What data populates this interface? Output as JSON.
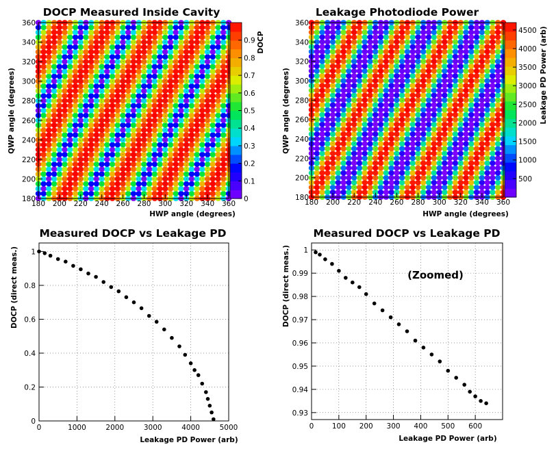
{
  "figure": {
    "panels": [
      {
        "title": "DOCP Measured Inside Cavity",
        "xlabel": "HWP angle  (degrees)",
        "ylabel": "QWP angle  (degrees)",
        "zlabel": "DOCP"
      },
      {
        "title": "Leakage Photodiode Power",
        "xlabel": "HWP angle  (degrees)",
        "ylabel": "QWP angle  (degrees)",
        "zlabel": "Leakage PD Power (arb)"
      },
      {
        "title": "Measured DOCP vs Leakage PD",
        "xlabel": "Leakage PD Power (arb)",
        "ylabel": "DOCP    (direct meas.)"
      },
      {
        "title": "Measured DOCP vs Leakage PD",
        "xlabel": "Leakage PD Power (arb)",
        "ylabel": "DOCP    (direct meas.)",
        "annotation": "(Zoomed)"
      }
    ]
  },
  "chart_data": [
    {
      "type": "heatmap",
      "title": "DOCP Measured Inside Cavity",
      "xlabel": "HWP angle  (degrees)",
      "ylabel": "QWP angle  (degrees)",
      "zlabel": "DOCP",
      "xlim": [
        180,
        360
      ],
      "ylim": [
        180,
        360
      ],
      "zlim": [
        0,
        1
      ],
      "x_step": 5,
      "y_step": 5,
      "xticks": [
        180,
        200,
        220,
        240,
        260,
        280,
        300,
        320,
        340,
        360
      ],
      "yticks": [
        180,
        200,
        220,
        240,
        260,
        280,
        300,
        320,
        340,
        360
      ],
      "zticks": [
        0,
        0.1,
        0.2,
        0.3,
        0.4,
        0.5,
        0.6,
        0.7,
        0.8,
        0.9
      ],
      "pattern": "DOCP = |sin(2*(2*HWP - QWP))|, diagonal stripes repeating every 45 degrees",
      "grid": true
    },
    {
      "type": "heatmap",
      "title": "Leakage Photodiode Power",
      "xlabel": "HWP angle  (degrees)",
      "ylabel": "QWP angle  (degrees)",
      "zlabel": "Leakage PD Power (arb)",
      "xlim": [
        180,
        360
      ],
      "ylim": [
        180,
        360
      ],
      "zlim": [
        0,
        4700
      ],
      "x_step": 5,
      "y_step": 5,
      "xticks": [
        180,
        200,
        220,
        240,
        260,
        280,
        300,
        320,
        340,
        360
      ],
      "yticks": [
        180,
        200,
        220,
        240,
        260,
        280,
        300,
        320,
        340,
        360
      ],
      "zticks": [
        500,
        1000,
        1500,
        2000,
        2500,
        3000,
        3500,
        4000,
        4500
      ],
      "pattern": "Power = 4600*cos^2(2*(2*HWP - QWP)), complementary to DOCP",
      "grid": true
    },
    {
      "type": "scatter",
      "title": "Measured DOCP vs Leakage PD",
      "xlabel": "Leakage PD Power (arb)",
      "ylabel": "DOCP    (direct meas.)",
      "xlim": [
        0,
        5000
      ],
      "ylim": [
        0,
        1.05
      ],
      "xticks": [
        0,
        1000,
        2000,
        3000,
        4000,
        5000
      ],
      "yticks": [
        0,
        0.2,
        0.4,
        0.6,
        0.8,
        1
      ],
      "series": [
        {
          "x": [
            0,
            150,
            300,
            500,
            700,
            900,
            1100,
            1300,
            1500,
            1700,
            1900,
            2100,
            2300,
            2500,
            2700,
            2900,
            3100,
            3300,
            3500,
            3700,
            3850,
            4000,
            4100,
            4200,
            4300,
            4400,
            4450,
            4500,
            4550,
            4600
          ],
          "y": [
            1.0,
            0.99,
            0.975,
            0.955,
            0.94,
            0.915,
            0.895,
            0.87,
            0.85,
            0.82,
            0.79,
            0.765,
            0.73,
            0.7,
            0.665,
            0.62,
            0.585,
            0.54,
            0.49,
            0.44,
            0.39,
            0.34,
            0.3,
            0.27,
            0.22,
            0.17,
            0.13,
            0.09,
            0.05,
            0.01
          ]
        }
      ],
      "grid": true
    },
    {
      "type": "scatter",
      "title": "Measured DOCP vs Leakage PD",
      "xlabel": "Leakage PD Power (arb)",
      "ylabel": "DOCP    (direct meas.)",
      "annotation": "(Zoomed)",
      "xlim": [
        0,
        700
      ],
      "ylim": [
        0.927,
        1.003
      ],
      "xticks": [
        0,
        100,
        200,
        300,
        400,
        500,
        600
      ],
      "yticks": [
        0.93,
        0.94,
        0.95,
        0.96,
        0.97,
        0.98,
        0.99,
        1
      ],
      "series": [
        {
          "x": [
            15,
            30,
            50,
            75,
            100,
            125,
            150,
            175,
            200,
            230,
            260,
            290,
            320,
            350,
            380,
            410,
            440,
            470,
            500,
            530,
            560,
            580,
            600,
            620,
            640
          ],
          "y": [
            0.999,
            0.998,
            0.996,
            0.994,
            0.991,
            0.988,
            0.986,
            0.984,
            0.981,
            0.977,
            0.974,
            0.971,
            0.968,
            0.965,
            0.961,
            0.958,
            0.955,
            0.952,
            0.948,
            0.945,
            0.942,
            0.939,
            0.937,
            0.935,
            0.934
          ]
        }
      ],
      "grid": true
    }
  ]
}
